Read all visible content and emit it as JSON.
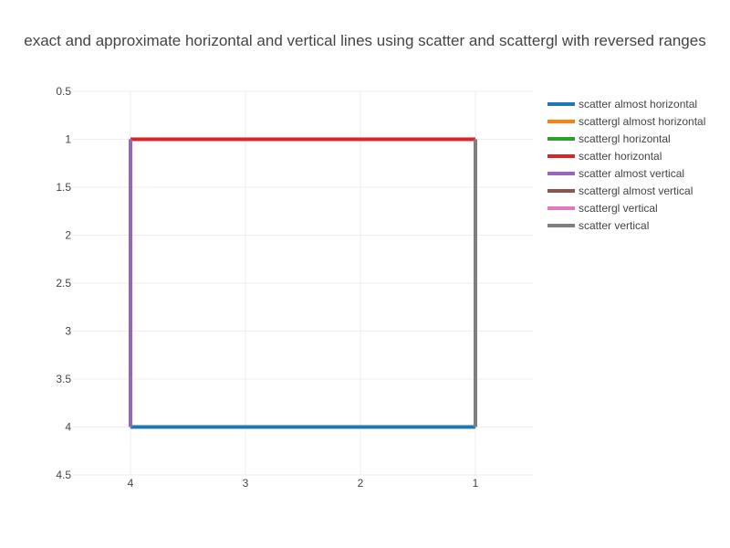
{
  "chart_data": {
    "type": "line",
    "title": "exact and approximate horizontal and vertical lines using scatter and scattergl with reversed ranges",
    "xlabel": "",
    "ylabel": "",
    "xlim": [
      4.5,
      0.5
    ],
    "ylim": [
      4.5,
      0.5
    ],
    "x_reversed": true,
    "y_reversed": true,
    "x_ticks": [
      4,
      3,
      2,
      1
    ],
    "y_ticks": [
      0.5,
      1,
      1.5,
      2,
      2.5,
      3,
      3.5,
      4,
      4.5
    ],
    "x_tick_labels": [
      "4",
      "3",
      "2",
      "1"
    ],
    "y_tick_labels": [
      "0.5",
      "1",
      "1.5",
      "2",
      "2.5",
      "3",
      "3.5",
      "4",
      "4.5"
    ],
    "grid": true,
    "legend_position": "top-right",
    "series": [
      {
        "name": "scatter almost horizontal",
        "color": "#1f77b4",
        "x": [
          1,
          4
        ],
        "y": [
          4,
          4
        ]
      },
      {
        "name": "scattergl almost horizontal",
        "color": "#ff7f0e",
        "x": [
          1,
          4
        ],
        "y": [
          4,
          4
        ]
      },
      {
        "name": "scattergl horizontal",
        "color": "#2ca02c",
        "x": [
          1,
          4
        ],
        "y": [
          1,
          1
        ]
      },
      {
        "name": "scatter horizontal",
        "color": "#d62728",
        "x": [
          1,
          4
        ],
        "y": [
          1,
          1
        ]
      },
      {
        "name": "scatter almost vertical",
        "color": "#9467bd",
        "x": [
          4,
          4
        ],
        "y": [
          1,
          4
        ]
      },
      {
        "name": "scattergl almost vertical",
        "color": "#8c564b",
        "x": [
          4,
          4
        ],
        "y": [
          1,
          4
        ]
      },
      {
        "name": "scattergl vertical",
        "color": "#e377c2",
        "x": [
          1,
          1
        ],
        "y": [
          1,
          4
        ]
      },
      {
        "name": "scatter vertical",
        "color": "#7f7f7f",
        "x": [
          1,
          1
        ],
        "y": [
          1,
          4
        ]
      }
    ],
    "draw_order": [
      1,
      0,
      2,
      3,
      5,
      4,
      6,
      7
    ]
  }
}
